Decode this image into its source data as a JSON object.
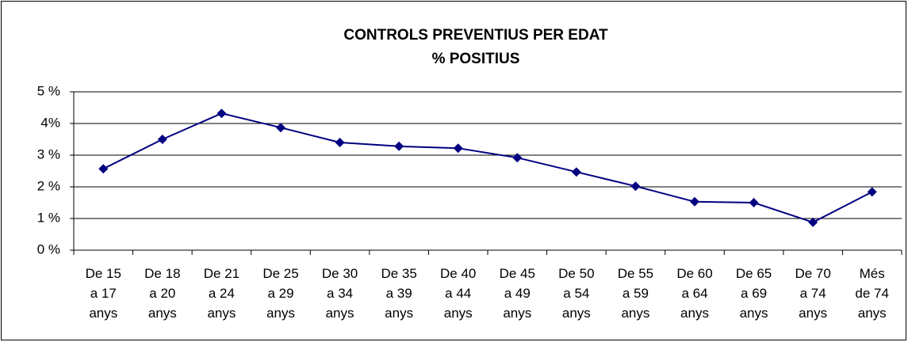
{
  "chart_data": {
    "type": "line",
    "title": "CONTROLS PREVENTIUS PER EDAT",
    "subtitle": "% POSITIUS",
    "categories": [
      "De 15\na 17\nanys",
      "De 18\na 20\nanys",
      "De 21\na 24\nanys",
      "De 25\na 29\nanys",
      "De 30\na 34\nanys",
      "De 35\na 39\nanys",
      "De 40\na 44\nanys",
      "De 45\na 49\nanys",
      "De 50\na 54\nanys",
      "De 55\na 59\nanys",
      "De 60\na 64\nanys",
      "De 65\na 69\nanys",
      "De 70\na 74\nanys",
      "Més\nde 74\nanys"
    ],
    "values": [
      2.57,
      3.5,
      4.32,
      3.87,
      3.4,
      3.28,
      3.22,
      2.92,
      2.47,
      2.02,
      1.53,
      1.5,
      0.88,
      1.84
    ],
    "color": "#000080",
    "ylim": [
      0,
      5
    ],
    "yticks": [
      {
        "value": 0,
        "label": "0 %"
      },
      {
        "value": 1,
        "label": "1 %"
      },
      {
        "value": 2,
        "label": "2 %"
      },
      {
        "value": 3,
        "label": "3 %"
      },
      {
        "value": 4,
        "label": "4%"
      },
      {
        "value": 5,
        "label": "5 %"
      }
    ],
    "grid": true
  }
}
